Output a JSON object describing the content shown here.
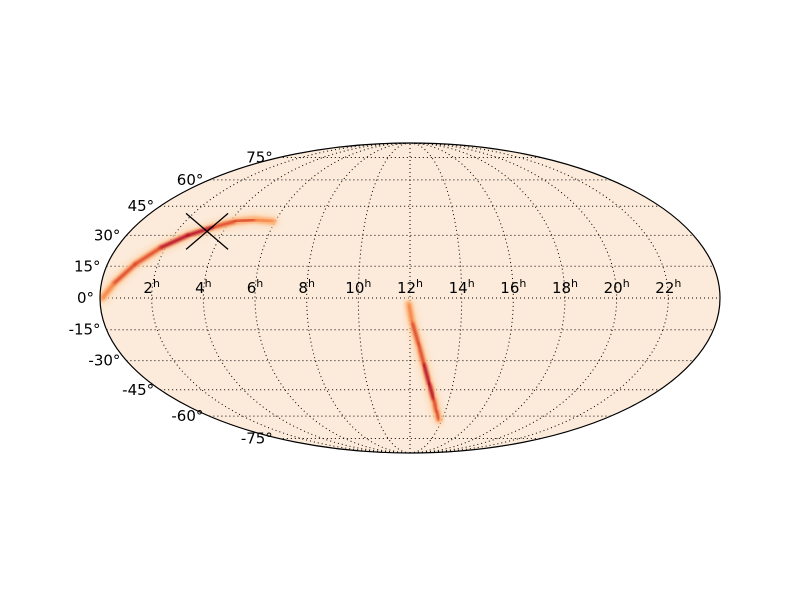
{
  "chart_data": {
    "type": "heatmap",
    "projection": "mollweide",
    "background_color": "#fcebdb",
    "outline_color": "#000000",
    "colormap": [
      "#fcebdb",
      "#fdd9b5",
      "#fca96b",
      "#f26b2e",
      "#d7301f",
      "#b10021"
    ],
    "grid": true,
    "ra_ticks": [
      {
        "ra_hours": 22,
        "label": "22",
        "sup": "h"
      },
      {
        "ra_hours": 20,
        "label": "20",
        "sup": "h"
      },
      {
        "ra_hours": 18,
        "label": "18",
        "sup": "h"
      },
      {
        "ra_hours": 16,
        "label": "16",
        "sup": "h"
      },
      {
        "ra_hours": 14,
        "label": "14",
        "sup": "h"
      },
      {
        "ra_hours": 12,
        "label": "12",
        "sup": "h"
      },
      {
        "ra_hours": 10,
        "label": "10",
        "sup": "h"
      },
      {
        "ra_hours": 8,
        "label": "8",
        "sup": "h"
      },
      {
        "ra_hours": 6,
        "label": "6",
        "sup": "h"
      },
      {
        "ra_hours": 4,
        "label": "4",
        "sup": "h"
      },
      {
        "ra_hours": 2,
        "label": "2",
        "sup": "h"
      }
    ],
    "dec_ticks": [
      {
        "dec": 75,
        "label": "75°"
      },
      {
        "dec": 60,
        "label": "60°"
      },
      {
        "dec": 45,
        "label": "45°"
      },
      {
        "dec": 30,
        "label": "30°"
      },
      {
        "dec": 15,
        "label": "15°"
      },
      {
        "dec": 0,
        "label": "0°"
      },
      {
        "dec": -15,
        "label": "-15°"
      },
      {
        "dec": -30,
        "label": "-30°"
      },
      {
        "dec": -45,
        "label": "-45°"
      },
      {
        "dec": -60,
        "label": "-60°"
      },
      {
        "dec": -75,
        "label": "-75°"
      }
    ],
    "probability_arcs": [
      {
        "name": "northern-arc",
        "points": [
          [
            5.9,
            37
          ],
          [
            5.0,
            38
          ],
          [
            4.2,
            37
          ],
          [
            3.4,
            34
          ],
          [
            2.6,
            30
          ],
          [
            1.8,
            24
          ],
          [
            1.1,
            16
          ],
          [
            0.5,
            7
          ],
          [
            0.1,
            0
          ]
        ],
        "peak_index": 4
      },
      {
        "name": "southern-arc",
        "points": [
          [
            11.95,
            -3
          ],
          [
            12.1,
            -12
          ],
          [
            12.35,
            -22
          ],
          [
            12.6,
            -32
          ],
          [
            12.9,
            -42
          ],
          [
            13.2,
            -50
          ],
          [
            13.5,
            -57
          ],
          [
            13.8,
            -62
          ]
        ],
        "peak_index": 4
      }
    ],
    "marker": {
      "type": "cross",
      "ra_hours": 3.3,
      "dec": 32
    }
  }
}
